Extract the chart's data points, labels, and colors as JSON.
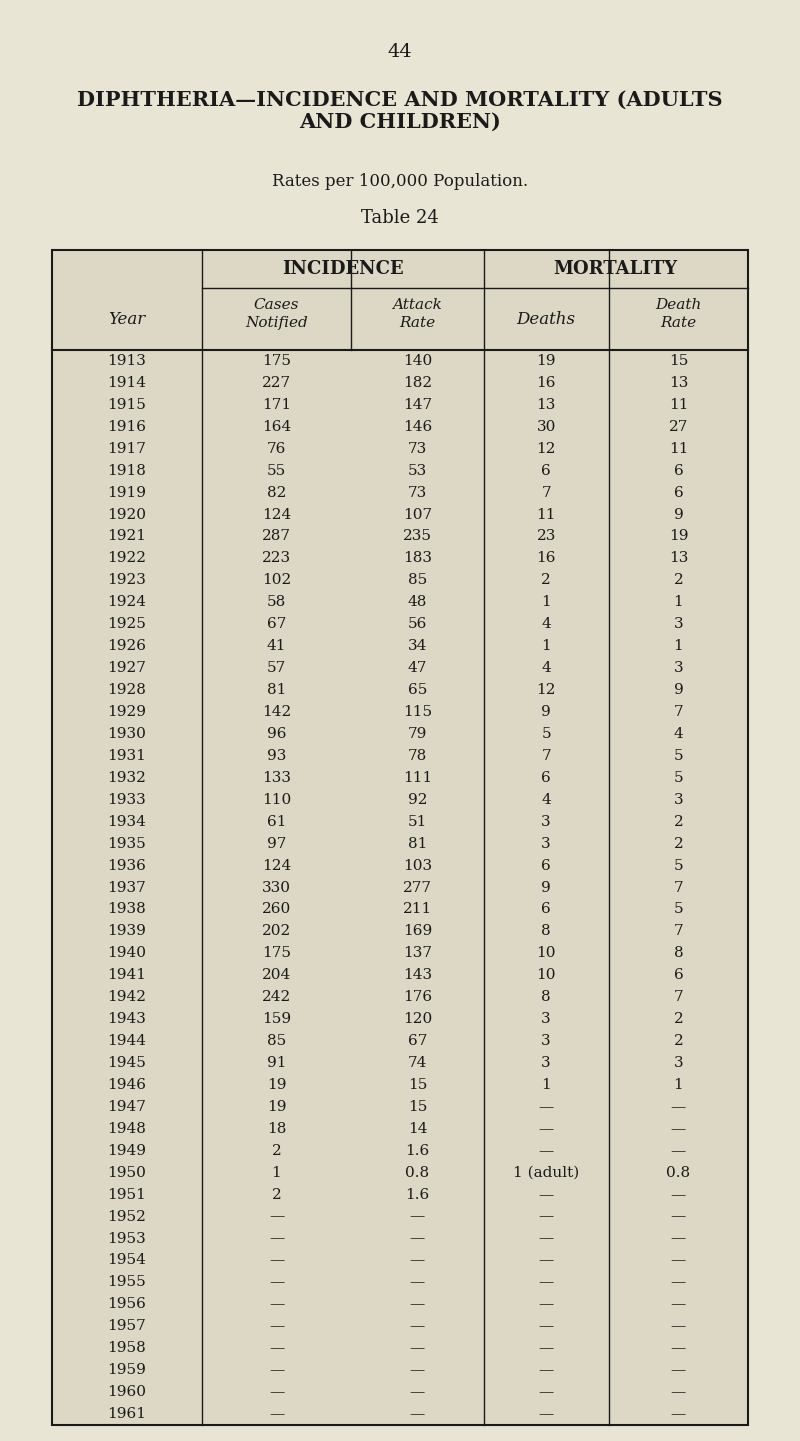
{
  "page_number": "44",
  "title_line1": "DIPHTHERIA—INCIDENCE AND MORTALITY (ADULTS",
  "title_line2": "AND CHILDREN)",
  "subtitle": "Rates per 100,000 Population.",
  "table_label": "Table 24",
  "rows": [
    [
      "1913",
      "175",
      "140",
      "19",
      "15"
    ],
    [
      "1914",
      "227",
      "182",
      "16",
      "13"
    ],
    [
      "1915",
      "171",
      "147",
      "13",
      "11"
    ],
    [
      "1916",
      "164",
      "146",
      "30",
      "27"
    ],
    [
      "1917",
      "76",
      "73",
      "12",
      "11"
    ],
    [
      "1918",
      "55",
      "53",
      "6",
      "6"
    ],
    [
      "1919",
      "82",
      "73",
      "7",
      "6"
    ],
    [
      "1920",
      "124",
      "107",
      "11",
      "9"
    ],
    [
      "1921",
      "287",
      "235",
      "23",
      "19"
    ],
    [
      "1922",
      "223",
      "183",
      "16",
      "13"
    ],
    [
      "1923",
      "102",
      "85",
      "2",
      "2"
    ],
    [
      "1924",
      "58",
      "48",
      "1",
      "1"
    ],
    [
      "1925",
      "67",
      "56",
      "4",
      "3"
    ],
    [
      "1926",
      "41",
      "34",
      "1",
      "1"
    ],
    [
      "1927",
      "57",
      "47",
      "4",
      "3"
    ],
    [
      "1928",
      "81",
      "65",
      "12",
      "9"
    ],
    [
      "1929",
      "142",
      "115",
      "9",
      "7"
    ],
    [
      "1930",
      "96",
      "79",
      "5",
      "4"
    ],
    [
      "1931",
      "93",
      "78",
      "7",
      "5"
    ],
    [
      "1932",
      "133",
      "111",
      "6",
      "5"
    ],
    [
      "1933",
      "110",
      "92",
      "4",
      "3"
    ],
    [
      "1934",
      "61",
      "51",
      "3",
      "2"
    ],
    [
      "1935",
      "97",
      "81",
      "3",
      "2"
    ],
    [
      "1936",
      "124",
      "103",
      "6",
      "5"
    ],
    [
      "1937",
      "330",
      "277",
      "9",
      "7"
    ],
    [
      "1938",
      "260",
      "211",
      "6",
      "5"
    ],
    [
      "1939",
      "202",
      "169",
      "8",
      "7"
    ],
    [
      "1940",
      "175",
      "137",
      "10",
      "8"
    ],
    [
      "1941",
      "204",
      "143",
      "10",
      "6"
    ],
    [
      "1942",
      "242",
      "176",
      "8",
      "7"
    ],
    [
      "1943",
      "159",
      "120",
      "3",
      "2"
    ],
    [
      "1944",
      "85",
      "67",
      "3",
      "2"
    ],
    [
      "1945",
      "91",
      "74",
      "3",
      "3"
    ],
    [
      "1946",
      "19",
      "15",
      "1",
      "1"
    ],
    [
      "1947",
      "19",
      "15",
      "—",
      "—"
    ],
    [
      "1948",
      "18",
      "14",
      "—",
      "—"
    ],
    [
      "1949",
      "2",
      "1.6",
      "—",
      "—"
    ],
    [
      "1950",
      "1",
      "0.8",
      "1 (adult)",
      "0.8"
    ],
    [
      "1951",
      "2",
      "1.6",
      "—",
      "—"
    ],
    [
      "1952",
      "—",
      "—",
      "—",
      "—"
    ],
    [
      "1953",
      "—",
      "—",
      "—",
      "—"
    ],
    [
      "1954",
      "—",
      "—",
      "—",
      "—"
    ],
    [
      "1955",
      "—",
      "—",
      "—",
      "—"
    ],
    [
      "1956",
      "—",
      "—",
      "—",
      "—"
    ],
    [
      "1957",
      "—",
      "—",
      "—",
      "—"
    ],
    [
      "1958",
      "—",
      "—",
      "—",
      "—"
    ],
    [
      "1959",
      "—",
      "—",
      "—",
      "—"
    ],
    [
      "1960",
      "—",
      "—",
      "—",
      "—"
    ],
    [
      "1961",
      "—",
      "—",
      "—",
      "—"
    ]
  ],
  "bg_color": "#e9e5d5",
  "text_color": "#1a1a1a",
  "table_bg": "#ddd8c5",
  "fig_w": 8.0,
  "fig_h": 14.41,
  "dpi": 100
}
